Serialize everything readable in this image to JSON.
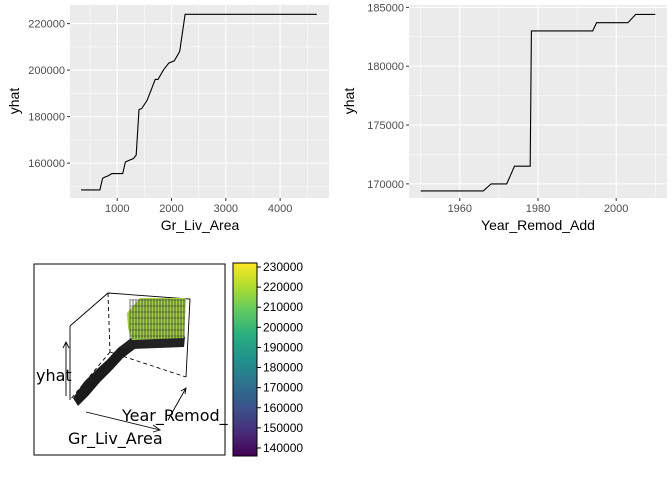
{
  "chart_data": [
    {
      "type": "line",
      "title": "",
      "xlabel": "Gr_Liv_Area",
      "ylabel": "yhat",
      "xlim": [
        130,
        4900
      ],
      "ylim": [
        145000,
        228000
      ],
      "x_ticks": [
        1000,
        2000,
        3000,
        4000
      ],
      "y_ticks": [
        160000,
        180000,
        200000,
        220000
      ],
      "x_tick_labels": [
        "1000",
        "2000",
        "3000",
        "4000"
      ],
      "y_tick_labels": [
        "160000",
        "180000",
        "200000",
        "220000"
      ],
      "grid": true,
      "series": [
        {
          "x": [
            334,
            500,
            680,
            730,
            770,
            830,
            900,
            1000,
            1100,
            1150,
            1200,
            1300,
            1350,
            1400,
            1450,
            1550,
            1600,
            1700,
            1750,
            1850,
            1950,
            2050,
            2150,
            2250,
            2320,
            4676
          ],
          "y": [
            148500,
            148500,
            148500,
            153500,
            154000,
            154500,
            155500,
            155500,
            155500,
            160500,
            161000,
            162000,
            163500,
            183000,
            183500,
            187000,
            190000,
            196000,
            196000,
            200000,
            203000,
            204000,
            208000,
            224000,
            224000,
            224000
          ]
        }
      ]
    },
    {
      "type": "line",
      "title": "",
      "xlabel": "Year_Remod_Add",
      "ylabel": "yhat",
      "xlim": [
        1947,
        2013
      ],
      "ylim": [
        168800,
        185200
      ],
      "x_ticks": [
        1960,
        1980,
        2000
      ],
      "y_ticks": [
        170000,
        175000,
        180000,
        185000
      ],
      "x_tick_labels": [
        "1960",
        "1980",
        "2000"
      ],
      "y_tick_labels": [
        "170000",
        "175000",
        "180000",
        "185000"
      ],
      "grid": true,
      "series": [
        {
          "x": [
            1950,
            1966,
            1968,
            1972,
            1974,
            1978,
            1978.3,
            1994,
            1995,
            2003,
            2005,
            2010
          ],
          "y": [
            169400,
            169400,
            170000,
            170000,
            171500,
            171500,
            183000,
            183000,
            183700,
            183700,
            184400,
            184400
          ]
        }
      ]
    },
    {
      "type": "surface",
      "title": "",
      "x_label_3d": "Gr_Liv_Area",
      "y_label_3d": "Year_Remod_",
      "z_label_3d": "yhat",
      "colorbar": {
        "colormap": "viridis",
        "range": [
          136000,
          232000
        ],
        "ticks": [
          "140000",
          "150000",
          "160000",
          "170000",
          "180000",
          "190000",
          "200000",
          "210000",
          "220000",
          "230000"
        ],
        "colors": [
          "#440154",
          "#472d7b",
          "#3b528b",
          "#2c728e",
          "#21918c",
          "#28ae80",
          "#5ec962",
          "#addc30",
          "#fde725"
        ]
      }
    }
  ]
}
